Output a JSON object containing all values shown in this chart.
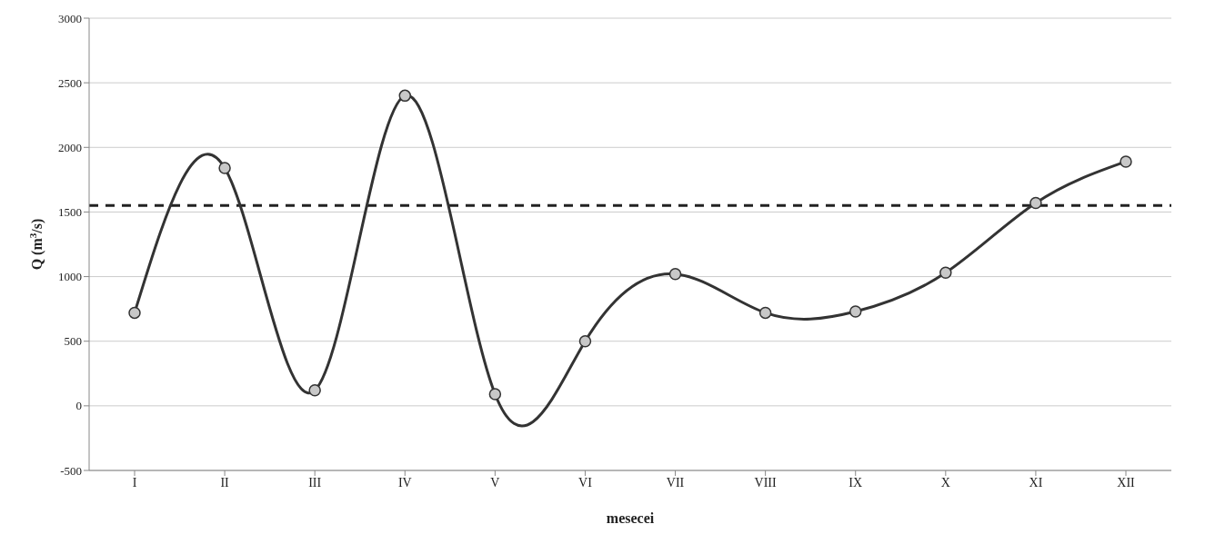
{
  "chart_data": {
    "type": "line",
    "xlabel": "mesecei",
    "ylabel": "Q (m$^{3}$/s)",
    "categories": [
      "I",
      "II",
      "III",
      "IV",
      "V",
      "VI",
      "VII",
      "VIII",
      "IX",
      "X",
      "XI",
      "XII"
    ],
    "series": [
      {
        "color": "#333333",
        "values": [
          720,
          1840,
          120,
          2400,
          90,
          500,
          1020,
          720,
          730,
          1030,
          1570,
          1890
        ]
      }
    ],
    "ylim": [
      -500,
      3000
    ],
    "yticks": [
      -500,
      0,
      500,
      1000,
      1500,
      2000,
      2500,
      3000
    ],
    "ref_lines": [
      {
        "axis": "y",
        "value": 1550,
        "color": "#222222",
        "line_style": "dashed"
      }
    ],
    "grid": "y",
    "legend": false,
    "marker": "circle",
    "line_style": "solid"
  }
}
